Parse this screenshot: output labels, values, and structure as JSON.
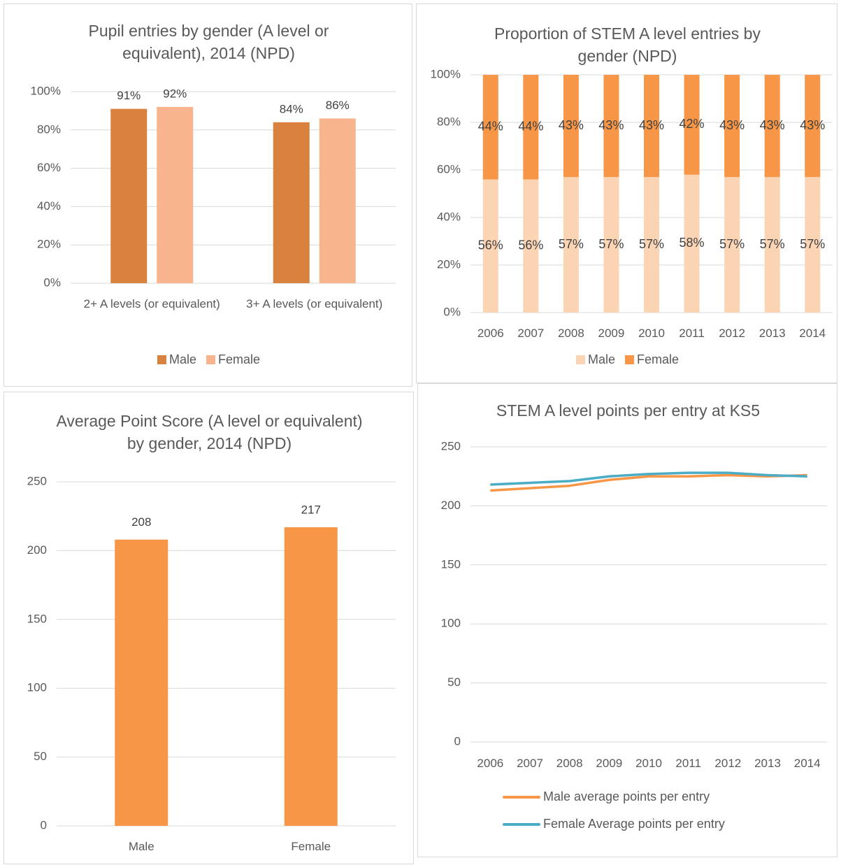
{
  "chart_data": [
    {
      "type": "bar",
      "title": "Pupil entries by gender (A level or equivalent), 2014  (NPD)",
      "categories": [
        "2+ A levels (or equivalent)",
        "3+ A levels (or equivalent)"
      ],
      "series": [
        {
          "name": "Male",
          "color": "#d9823f",
          "values": [
            91,
            84
          ],
          "value_labels": [
            "91%",
            "84%"
          ]
        },
        {
          "name": "Female",
          "color": "#f8b48c",
          "values": [
            92,
            86
          ],
          "value_labels": [
            "92%",
            "86%"
          ]
        }
      ],
      "ylim": [
        0,
        100
      ],
      "yticks": [
        {
          "value": 0,
          "label": "0%"
        },
        {
          "value": 20,
          "label": "20%"
        },
        {
          "value": 40,
          "label": "40%"
        },
        {
          "value": 60,
          "label": "60%"
        },
        {
          "value": 80,
          "label": "80%"
        },
        {
          "value": 100,
          "label": "100%"
        }
      ],
      "grid": true,
      "legend": "bottom"
    },
    {
      "type": "bar",
      "stacked": true,
      "title": "Proportion of STEM A level entries by gender (NPD)",
      "categories": [
        "2006",
        "2007",
        "2008",
        "2009",
        "2010",
        "2011",
        "2012",
        "2013",
        "2014"
      ],
      "series": [
        {
          "name": "Male",
          "color": "#fbd4b4",
          "values": [
            56,
            56,
            57,
            57,
            57,
            58,
            57,
            57,
            57
          ],
          "value_labels": [
            "56%",
            "56%",
            "57%",
            "57%",
            "57%",
            "58%",
            "57%",
            "57%",
            "57%"
          ]
        },
        {
          "name": "Female",
          "color": "#f79646",
          "values": [
            44,
            44,
            43,
            43,
            43,
            42,
            43,
            43,
            43
          ],
          "value_labels": [
            "44%",
            "44%",
            "43%",
            "43%",
            "43%",
            "42%",
            "43%",
            "43%",
            "43%"
          ]
        }
      ],
      "ylim": [
        0,
        100
      ],
      "yticks": [
        {
          "value": 0,
          "label": "0%"
        },
        {
          "value": 20,
          "label": "20%"
        },
        {
          "value": 40,
          "label": "40%"
        },
        {
          "value": 60,
          "label": "60%"
        },
        {
          "value": 80,
          "label": "80%"
        },
        {
          "value": 100,
          "label": "100%"
        }
      ],
      "grid": true,
      "legend": "bottom"
    },
    {
      "type": "bar",
      "title": "Average Point Score (A level or equivalent) by gender, 2014 (NPD)",
      "categories": [
        "Male",
        "Female"
      ],
      "values": [
        208,
        217
      ],
      "color": "#f79646",
      "ylim": [
        0,
        250
      ],
      "yticks": [
        0,
        50,
        100,
        150,
        200,
        250
      ],
      "grid": true
    },
    {
      "type": "line",
      "title": "STEM A level points per entry at KS5",
      "categories": [
        "2006",
        "2007",
        "2008",
        "2009",
        "2010",
        "2011",
        "2012",
        "2013",
        "2014"
      ],
      "series": [
        {
          "name": "Male average points per entry",
          "color": "#f79646",
          "values": [
            213,
            215,
            217,
            222,
            225,
            225,
            226,
            225,
            226
          ]
        },
        {
          "name": "Female Average points per entry",
          "color": "#4bacc6",
          "values": [
            218,
            219.5,
            221,
            225,
            227,
            228,
            228,
            226,
            225
          ]
        }
      ],
      "ylim": [
        0,
        250
      ],
      "yticks": [
        0,
        50,
        100,
        150,
        200,
        250
      ],
      "grid": true,
      "legend": "bottom"
    }
  ]
}
